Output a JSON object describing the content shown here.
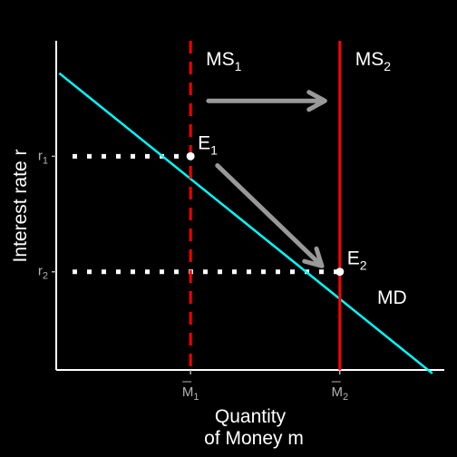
{
  "chart_data": {
    "type": "line",
    "xlabel": {
      "line1": "Quantity",
      "line2": "of Money m"
    },
    "ylabel": "Interest rate r",
    "x_ticks": [
      {
        "base": "M",
        "sub": "1",
        "overline": true,
        "x": 1
      },
      {
        "base": "M",
        "sub": "2",
        "overline": true,
        "x": 2
      }
    ],
    "y_ticks": [
      {
        "base": "r",
        "sub": "1",
        "y": 2
      },
      {
        "base": "r",
        "sub": "2",
        "y": 1
      }
    ],
    "xlim": [
      0.1,
      2.7
    ],
    "ylim": [
      0.15,
      3.0
    ],
    "series": [
      {
        "name": "MD",
        "type": "line",
        "color": "#00ffff",
        "points": [
          [
            0.12,
            2.72
          ],
          [
            2.62,
            0.12
          ]
        ]
      },
      {
        "name": "MS",
        "sub": "1",
        "type": "vline",
        "x": 1,
        "color": "#ff0000",
        "dash": "dashed"
      },
      {
        "name": "MS",
        "sub": "2",
        "type": "vline",
        "x": 2,
        "color": "#ff0000",
        "dash": "solid"
      }
    ],
    "points": [
      {
        "name": "E",
        "sub": "1",
        "x": 1,
        "y": 2
      },
      {
        "name": "E",
        "sub": "2",
        "x": 2,
        "y": 1
      }
    ],
    "guides": [
      {
        "y": 2,
        "x_to": 1,
        "style": "dotted",
        "color": "#ffffff"
      },
      {
        "y": 1,
        "x_to": 2,
        "style": "dotted",
        "color": "#ffffff"
      }
    ],
    "arrows": [
      {
        "from": [
          1.12,
          2.48
        ],
        "to": [
          1.9,
          2.48
        ],
        "color": "#999999",
        "meaning": "money-supply-shift"
      },
      {
        "from": [
          1.18,
          1.92
        ],
        "to": [
          1.88,
          1.05
        ],
        "color": "#999999",
        "meaning": "equilibrium-shift"
      }
    ],
    "grid": false,
    "legend": "none",
    "colors": {
      "background": "#000000",
      "axis": "#ffffff",
      "demand": "#00ffff",
      "supply": "#ff0000",
      "arrow": "#999999",
      "tick_label": "#b3b3b3"
    }
  }
}
